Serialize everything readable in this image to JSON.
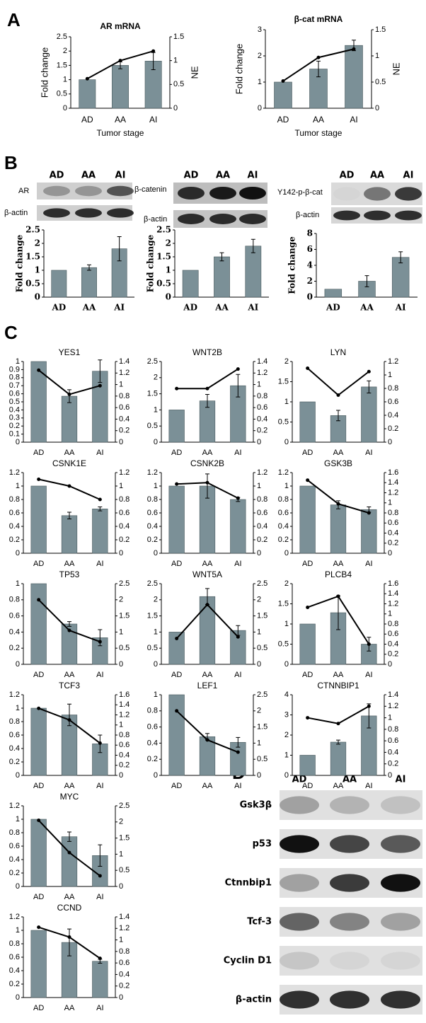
{
  "panel_labels": [
    "A",
    "B",
    "C",
    "D"
  ],
  "blots": [
    {
      "lanes": [
        "AD",
        "AA",
        "AI"
      ],
      "rows": [
        "AR",
        "β-actin"
      ]
    },
    {
      "lanes": [
        "AD",
        "AA",
        "AI"
      ],
      "rows": [
        "β-catenin",
        "β-actin"
      ]
    },
    {
      "lanes": [
        "AD",
        "AA",
        "AI"
      ],
      "rows": [
        "Y142-p-β-cat",
        "β-actin"
      ]
    },
    {
      "lanes": [
        "AD",
        "AA",
        "AI"
      ],
      "rows": [
        "Gsk3β",
        "p53",
        "Ctnnbip1",
        "Tcf-3",
        "Cyclin D1",
        "β-actin"
      ]
    }
  ],
  "chart_data": [
    {
      "type": "bar",
      "title": "AR mRNA",
      "ylabel": "Fold change",
      "y2label": "NE",
      "xlabel": "Tumor stage",
      "categories": [
        "AD",
        "AA",
        "AI"
      ],
      "ylim": [
        0,
        2.5
      ],
      "yticks": [
        0,
        0.5,
        1,
        1.5,
        2,
        2.5
      ],
      "y2lim": [
        0,
        1.5
      ],
      "y2ticks": [
        0,
        0.5,
        1,
        1.5
      ],
      "series": [
        {
          "color": "#7b9097",
          "values": [
            1,
            1.5,
            1.65
          ],
          "errors": [
            0,
            0.12,
            0.3
          ]
        },
        {
          "type": "line",
          "axis": "y2",
          "color": "#000000",
          "values": [
            0.62,
            1.0,
            1.2
          ]
        }
      ]
    },
    {
      "type": "bar",
      "title": "β-cat mRNA",
      "ylabel": "Fold change",
      "y2label": "NE",
      "xlabel": "Tumor stage",
      "categories": [
        "AD",
        "AA",
        "AI"
      ],
      "ylim": [
        0,
        3
      ],
      "yticks": [
        0,
        1,
        2,
        3
      ],
      "y2lim": [
        0,
        1.5
      ],
      "y2ticks": [
        0,
        0.5,
        1,
        1.5
      ],
      "series": [
        {
          "color": "#7b9097",
          "values": [
            1,
            1.5,
            2.4
          ],
          "errors": [
            0,
            0.3,
            0.2
          ]
        },
        {
          "type": "line",
          "axis": "y2",
          "color": "#000000",
          "values": [
            0.52,
            0.97,
            1.13
          ]
        }
      ]
    },
    {
      "type": "bar",
      "ylabel": "Fold change",
      "categories": [
        "AD",
        "AA",
        "AI"
      ],
      "ylim": [
        0,
        2.5
      ],
      "yticks": [
        0,
        0.5,
        1,
        1.5,
        2,
        2.5
      ],
      "series": [
        {
          "color": "#7b9097",
          "values": [
            1,
            1.1,
            1.8
          ],
          "errors": [
            0,
            0.1,
            0.45
          ]
        }
      ]
    },
    {
      "type": "bar",
      "ylabel": "Fold change",
      "categories": [
        "AD",
        "AA",
        "AI"
      ],
      "ylim": [
        0,
        2.5
      ],
      "yticks": [
        0,
        0.5,
        1,
        1.5,
        2,
        2.5
      ],
      "series": [
        {
          "color": "#7b9097",
          "values": [
            1,
            1.5,
            1.9
          ],
          "errors": [
            0,
            0.15,
            0.25
          ]
        }
      ]
    },
    {
      "type": "bar",
      "ylabel": "Fold change",
      "categories": [
        "AD",
        "AA",
        "AI"
      ],
      "ylim": [
        0,
        8
      ],
      "yticks": [
        0,
        2,
        4,
        6,
        8
      ],
      "series": [
        {
          "color": "#7b9097",
          "values": [
            1,
            2,
            5
          ],
          "errors": [
            0,
            0.7,
            0.7
          ]
        }
      ]
    },
    {
      "type": "bar",
      "title": "YES1",
      "categories": [
        "AD",
        "AA",
        "AI"
      ],
      "ylim": [
        0,
        1
      ],
      "yticks": [
        0,
        0.1,
        0.2,
        0.3,
        0.4,
        0.5,
        0.6,
        0.7,
        0.8,
        0.9,
        1
      ],
      "y2lim": [
        0,
        1.4
      ],
      "y2ticks": [
        0,
        0.2,
        0.4,
        0.6,
        0.8,
        1,
        1.2,
        1.4
      ],
      "series": [
        {
          "color": "#7b9097",
          "values": [
            1,
            0.57,
            0.88
          ],
          "errors": [
            0,
            0.08,
            0.14
          ]
        },
        {
          "type": "line",
          "axis": "y2",
          "color": "#000000",
          "values": [
            1.25,
            0.83,
            0.98
          ]
        }
      ]
    },
    {
      "type": "bar",
      "title": "WNT2B",
      "categories": [
        "AD",
        "AA",
        "AI"
      ],
      "ylim": [
        0,
        2.5
      ],
      "yticks": [
        0,
        0.5,
        1,
        1.5,
        2,
        2.5
      ],
      "y2lim": [
        0,
        1.4
      ],
      "y2ticks": [
        0,
        0.2,
        0.4,
        0.6,
        0.8,
        1,
        1.2,
        1.4
      ],
      "series": [
        {
          "color": "#7b9097",
          "values": [
            1,
            1.28,
            1.75
          ],
          "errors": [
            0,
            0.2,
            0.35
          ]
        },
        {
          "type": "line",
          "axis": "y2",
          "color": "#000000",
          "values": [
            0.93,
            0.93,
            1.27
          ]
        }
      ]
    },
    {
      "type": "bar",
      "title": "LYN",
      "categories": [
        "AD",
        "AA",
        "AI"
      ],
      "ylim": [
        0,
        2
      ],
      "yticks": [
        0,
        0.5,
        1,
        1.5,
        2
      ],
      "y2lim": [
        0,
        1.2
      ],
      "y2ticks": [
        0,
        0.2,
        0.4,
        0.6,
        0.8,
        1,
        1.2
      ],
      "series": [
        {
          "color": "#7b9097",
          "values": [
            1,
            0.66,
            1.37
          ],
          "errors": [
            0,
            0.13,
            0.15
          ]
        },
        {
          "type": "line",
          "axis": "y2",
          "color": "#000000",
          "values": [
            1.1,
            0.7,
            1.05
          ]
        }
      ]
    },
    {
      "type": "bar",
      "title": "CSNK1E",
      "categories": [
        "AD",
        "AA",
        "AI"
      ],
      "ylim": [
        0,
        1.2
      ],
      "yticks": [
        0,
        0.2,
        0.4,
        0.6,
        0.8,
        1,
        1.2
      ],
      "y2lim": [
        0,
        1.2
      ],
      "y2ticks": [
        0,
        0.2,
        0.4,
        0.6,
        0.8,
        1,
        1.2
      ],
      "series": [
        {
          "color": "#7b9097",
          "values": [
            1,
            0.56,
            0.66
          ],
          "errors": [
            0,
            0.05,
            0.03
          ]
        },
        {
          "type": "line",
          "axis": "y2",
          "color": "#000000",
          "values": [
            1.1,
            1.0,
            0.8
          ]
        }
      ]
    },
    {
      "type": "bar",
      "title": "CSNK2B",
      "categories": [
        "AD",
        "AA",
        "AI"
      ],
      "ylim": [
        0,
        1.2
      ],
      "yticks": [
        0,
        0.2,
        0.4,
        0.6,
        0.8,
        1,
        1.2
      ],
      "y2lim": [
        0,
        1.2
      ],
      "y2ticks": [
        0,
        0.2,
        0.4,
        0.6,
        0.8,
        1,
        1.2
      ],
      "series": [
        {
          "color": "#7b9097",
          "values": [
            1,
            1.0,
            0.8
          ],
          "errors": [
            0,
            0.18,
            0.03
          ]
        },
        {
          "type": "line",
          "axis": "y2",
          "color": "#000000",
          "values": [
            1.03,
            1.05,
            0.82
          ]
        }
      ]
    },
    {
      "type": "bar",
      "title": "GSK3B",
      "categories": [
        "AD",
        "AA",
        "AI"
      ],
      "ylim": [
        0,
        1.2
      ],
      "yticks": [
        0,
        0.2,
        0.4,
        0.6,
        0.8,
        1,
        1.2
      ],
      "y2lim": [
        0,
        1.6
      ],
      "y2ticks": [
        0,
        0.2,
        0.4,
        0.6,
        0.8,
        1,
        1.2,
        1.4,
        1.6
      ],
      "series": [
        {
          "color": "#7b9097",
          "values": [
            1,
            0.72,
            0.65
          ],
          "errors": [
            0,
            0.06,
            0.04
          ]
        },
        {
          "type": "line",
          "axis": "y2",
          "color": "#000000",
          "values": [
            1.45,
            0.98,
            0.8
          ]
        }
      ]
    },
    {
      "type": "bar",
      "title": "TP53",
      "categories": [
        "AD",
        "AA",
        "AI"
      ],
      "ylim": [
        0,
        1
      ],
      "yticks": [
        0,
        0.2,
        0.4,
        0.6,
        0.8,
        1
      ],
      "y2lim": [
        0,
        2.5
      ],
      "y2ticks": [
        0,
        0.5,
        1,
        1.5,
        2,
        2.5
      ],
      "series": [
        {
          "color": "#7b9097",
          "values": [
            1,
            0.5,
            0.33
          ],
          "errors": [
            0,
            0.03,
            0.1
          ]
        },
        {
          "type": "line",
          "axis": "y2",
          "color": "#000000",
          "values": [
            2.0,
            1.05,
            0.7
          ]
        }
      ]
    },
    {
      "type": "bar",
      "title": "WNT5A",
      "categories": [
        "AD",
        "AA",
        "AI"
      ],
      "ylim": [
        0,
        2.5
      ],
      "yticks": [
        0,
        0.5,
        1,
        1.5,
        2,
        2.5
      ],
      "y2lim": [
        0,
        2.5
      ],
      "y2ticks": [
        0,
        0.5,
        1,
        1.5,
        2,
        2.5
      ],
      "series": [
        {
          "color": "#7b9097",
          "values": [
            1,
            2.1,
            1.05
          ],
          "errors": [
            0,
            0.25,
            0.15
          ]
        },
        {
          "type": "line",
          "axis": "y2",
          "color": "#000000",
          "values": [
            0.8,
            1.85,
            0.85
          ]
        }
      ]
    },
    {
      "type": "bar",
      "title": "PLCB4",
      "categories": [
        "AD",
        "AA",
        "AI"
      ],
      "ylim": [
        0,
        2
      ],
      "yticks": [
        0,
        0.5,
        1,
        1.5,
        2
      ],
      "y2lim": [
        0,
        1.6
      ],
      "y2ticks": [
        0,
        0.2,
        0.4,
        0.6,
        0.8,
        1,
        1.2,
        1.4,
        1.6
      ],
      "series": [
        {
          "color": "#7b9097",
          "values": [
            1,
            1.28,
            0.5
          ],
          "errors": [
            0,
            0.42,
            0.17
          ]
        },
        {
          "type": "line",
          "axis": "y2",
          "color": "#000000",
          "values": [
            1.13,
            1.35,
            0.4
          ]
        }
      ]
    },
    {
      "type": "bar",
      "title": "TCF3",
      "categories": [
        "AD",
        "AA",
        "AI"
      ],
      "ylim": [
        0,
        1.2
      ],
      "yticks": [
        0,
        0.2,
        0.4,
        0.6,
        0.8,
        1,
        1.2
      ],
      "y2lim": [
        0,
        1.6
      ],
      "y2ticks": [
        0,
        0.2,
        0.4,
        0.6,
        0.8,
        1,
        1.2,
        1.4,
        1.6
      ],
      "series": [
        {
          "color": "#7b9097",
          "values": [
            1,
            0.9,
            0.47
          ],
          "errors": [
            0,
            0.16,
            0.13
          ]
        },
        {
          "type": "line",
          "axis": "y2",
          "color": "#000000",
          "values": [
            1.33,
            1.1,
            0.64
          ]
        }
      ]
    },
    {
      "type": "bar",
      "title": "LEF1",
      "categories": [
        "AD",
        "AA",
        "AI"
      ],
      "ylim": [
        0,
        1
      ],
      "yticks": [
        0,
        0.2,
        0.4,
        0.6,
        0.8,
        1
      ],
      "y2lim": [
        0,
        2.5
      ],
      "y2ticks": [
        0,
        0.5,
        1,
        1.5,
        2,
        2.5
      ],
      "series": [
        {
          "color": "#7b9097",
          "values": [
            1,
            0.48,
            0.41
          ],
          "errors": [
            0,
            0.04,
            0.06
          ]
        },
        {
          "type": "line",
          "axis": "y2",
          "color": "#000000",
          "values": [
            2.0,
            1.1,
            0.72
          ]
        }
      ]
    },
    {
      "type": "bar",
      "title": "CTNNBIP1",
      "categories": [
        "AD",
        "AA",
        "AI"
      ],
      "ylim": [
        0,
        4
      ],
      "yticks": [
        0,
        1,
        2,
        3,
        4
      ],
      "y2lim": [
        0,
        1.4
      ],
      "y2ticks": [
        0,
        0.2,
        0.4,
        0.6,
        0.8,
        1,
        1.2,
        1.4
      ],
      "series": [
        {
          "color": "#7b9097",
          "values": [
            1,
            1.65,
            2.95
          ],
          "errors": [
            0,
            0.1,
            0.6
          ]
        },
        {
          "type": "line",
          "axis": "y2",
          "color": "#000000",
          "values": [
            1.0,
            0.9,
            1.2
          ]
        }
      ]
    },
    {
      "type": "bar",
      "title": "MYC",
      "categories": [
        "AD",
        "AA",
        "AI"
      ],
      "ylim": [
        0,
        1.2
      ],
      "yticks": [
        0,
        0.2,
        0.4,
        0.6,
        0.8,
        1,
        1.2
      ],
      "y2lim": [
        0,
        2.5
      ],
      "y2ticks": [
        0,
        0.5,
        1,
        1.5,
        2,
        2.5
      ],
      "series": [
        {
          "color": "#7b9097",
          "values": [
            1,
            0.74,
            0.46
          ],
          "errors": [
            0,
            0.07,
            0.16
          ]
        },
        {
          "type": "line",
          "axis": "y2",
          "color": "#000000",
          "values": [
            2.05,
            1.05,
            0.33
          ]
        }
      ]
    },
    {
      "type": "bar",
      "title": "CCND",
      "categories": [
        "AD",
        "AA",
        "AI"
      ],
      "ylim": [
        0,
        1.2
      ],
      "yticks": [
        0,
        0.2,
        0.4,
        0.6,
        0.8,
        1,
        1.2
      ],
      "y2lim": [
        0,
        1.4
      ],
      "y2ticks": [
        0,
        0.2,
        0.4,
        0.6,
        0.8,
        1,
        1.2,
        1.4
      ],
      "series": [
        {
          "color": "#7b9097",
          "values": [
            1,
            0.82,
            0.54
          ],
          "errors": [
            0,
            0.2,
            0.03
          ]
        },
        {
          "type": "line",
          "axis": "y2",
          "color": "#000000",
          "values": [
            1.22,
            1.05,
            0.68
          ]
        }
      ]
    }
  ]
}
